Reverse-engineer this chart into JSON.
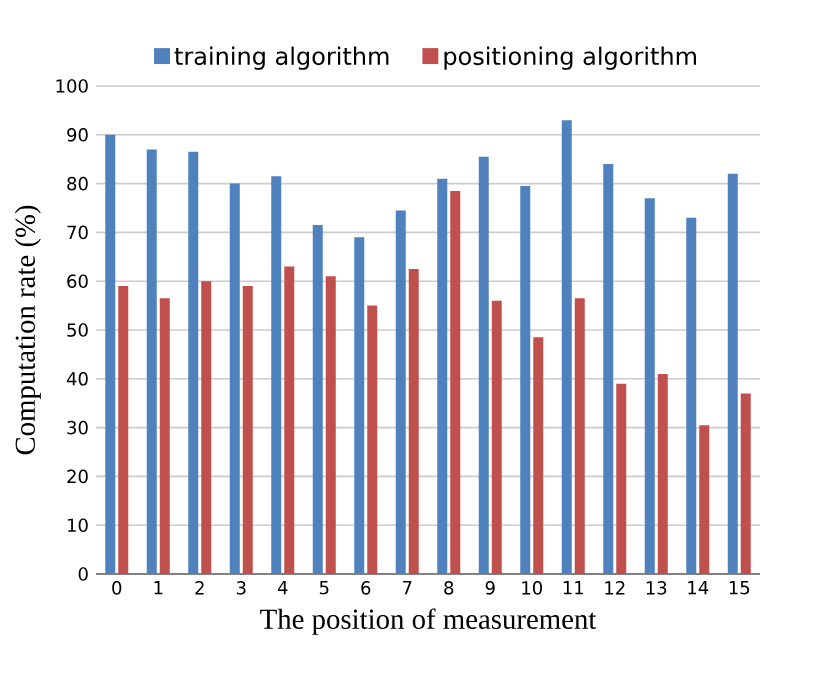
{
  "chart_data": {
    "type": "bar",
    "xlabel": "The position of measurement",
    "ylabel": "Computation rate (%)",
    "categories": [
      "0",
      "1",
      "2",
      "3",
      "4",
      "5",
      "6",
      "7",
      "8",
      "9",
      "10",
      "11",
      "12",
      "13",
      "14",
      "15"
    ],
    "series": [
      {
        "name": "training algorithm",
        "color": "#4f81bd",
        "values": [
          90,
          87,
          86.5,
          80,
          81.5,
          71.5,
          69,
          74.5,
          81,
          85.5,
          79.5,
          93,
          84,
          77,
          73,
          82
        ]
      },
      {
        "name": "positioning algorithm",
        "color": "#c0504d",
        "values": [
          59,
          56.5,
          60,
          59,
          63,
          61,
          55,
          62.5,
          78.5,
          56,
          48.5,
          56.5,
          39,
          41,
          30.5,
          37
        ]
      }
    ],
    "ylim": [
      0,
      100
    ],
    "yticks": [
      0,
      10,
      20,
      30,
      40,
      50,
      60,
      70,
      80,
      90,
      100
    ],
    "grid": "y",
    "legend": "top"
  }
}
